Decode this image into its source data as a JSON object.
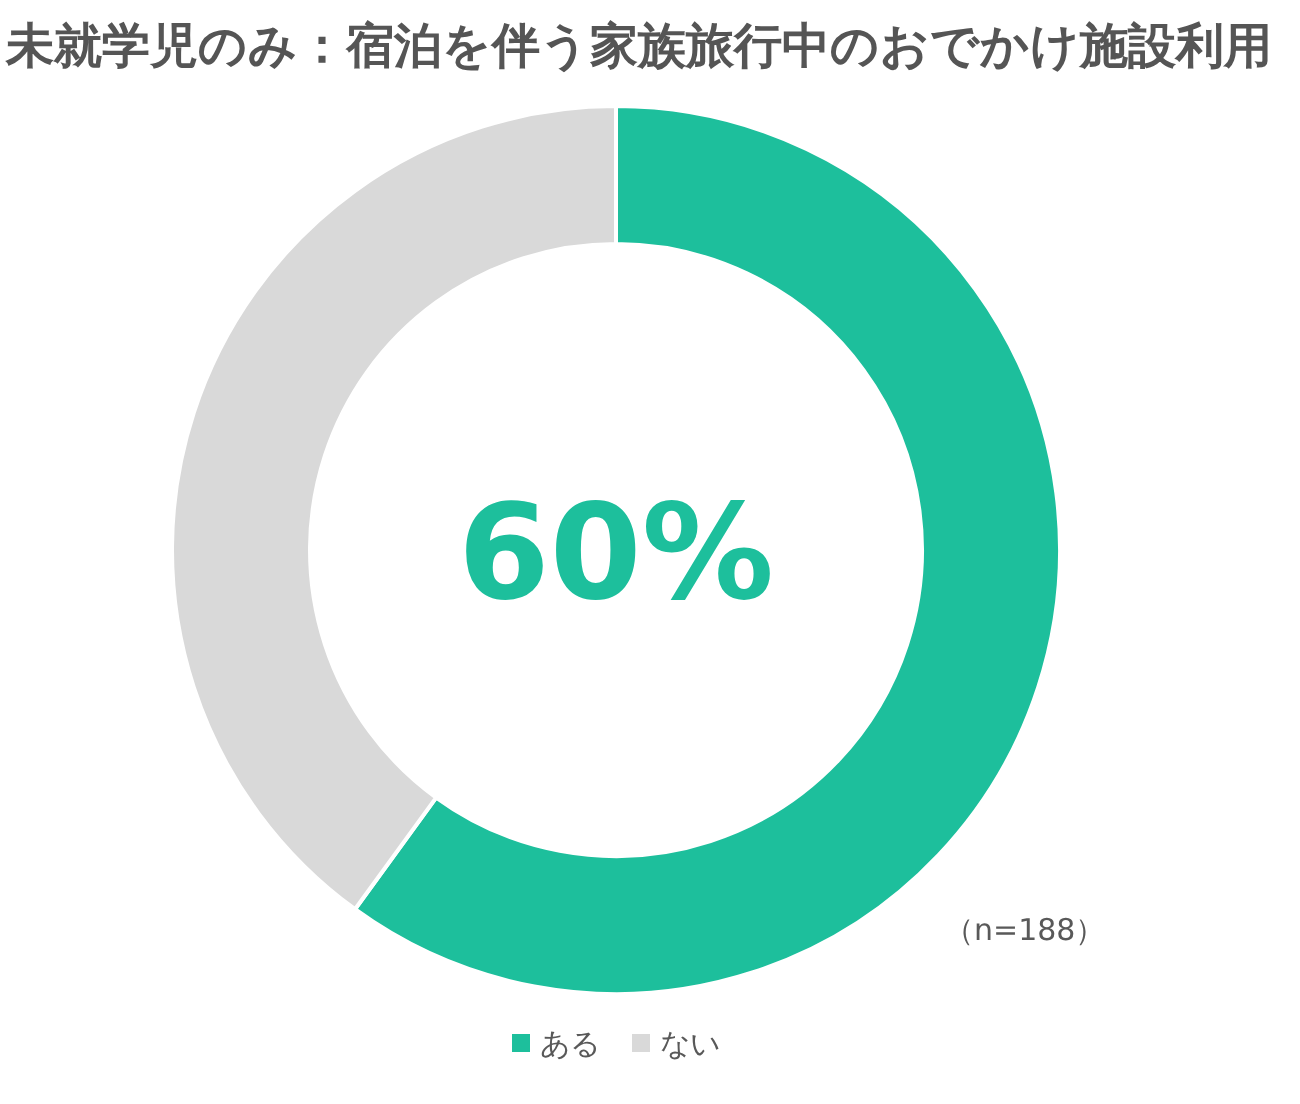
{
  "chart_data": {
    "type": "donut",
    "title": "未就学児のみ：宿泊を伴う家族旅行中のおでかけ施設利用",
    "categories": [
      "ある",
      "ない"
    ],
    "values": [
      60,
      40
    ],
    "colors": [
      "#1dbf9c",
      "#d9d9d9"
    ],
    "annotations": [
      "60%",
      "（n=188）"
    ],
    "legend": "bottom"
  }
}
